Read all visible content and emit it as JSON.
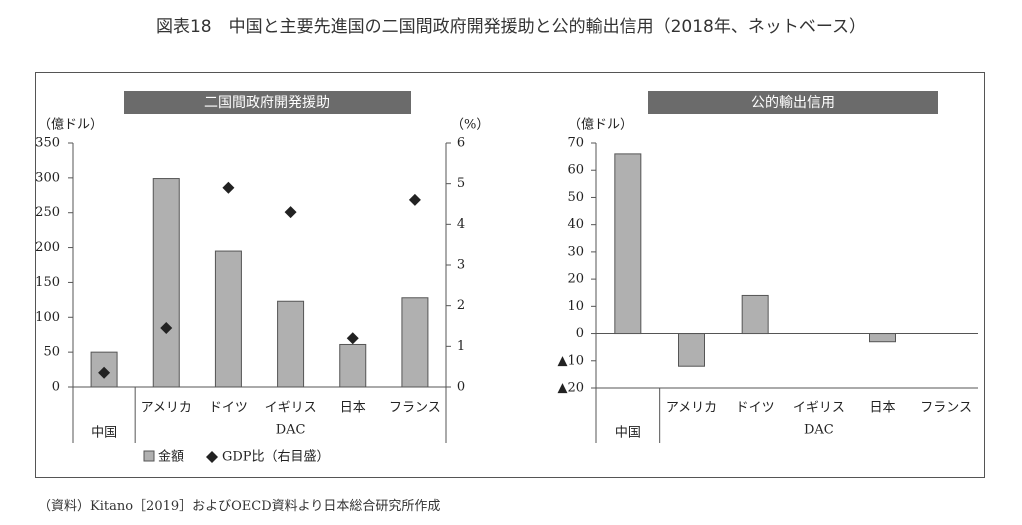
{
  "title": "図表18　中国と主要先進国の二国間政府開発援助と公的輸出信用（2018年、ネットベース）",
  "source": "（資料）Kitano［2019］およびOECD資料より日本総合研究所作成",
  "colors": {
    "bar": "#b0b0b0",
    "bar_stroke": "#555555",
    "header_bg": "#6b6b6b",
    "header_text": "#ffffff",
    "marker": "#222222"
  },
  "chart_data": [
    {
      "type": "bar",
      "title": "二国間政府開発援助",
      "y_unit_label": "（億ドル）",
      "y2_unit_label": "（%）",
      "categories": [
        "中国",
        "アメリカ",
        "ドイツ",
        "イギリス",
        "日本",
        "フランス"
      ],
      "group_label": "DAC",
      "ylim": [
        0,
        350
      ],
      "yticks": [
        0,
        50,
        100,
        150,
        200,
        250,
        300,
        350
      ],
      "y2lim": [
        0,
        6
      ],
      "y2ticks": [
        0,
        1,
        2,
        3,
        4,
        5,
        6
      ],
      "series": [
        {
          "name": "金額",
          "type": "bar",
          "axis": "left",
          "values": [
            50,
            299,
            195,
            123,
            61,
            128
          ]
        },
        {
          "name": "GDP比（右目盛）",
          "type": "marker",
          "axis": "right",
          "values": [
            0.35,
            1.45,
            4.9,
            4.3,
            1.2,
            4.6
          ]
        }
      ],
      "legend": [
        "金額",
        "GDP比（右目盛）"
      ],
      "legend_position": "bottom"
    },
    {
      "type": "bar",
      "title": "公的輸出信用",
      "y_unit_label": "（億ドル）",
      "categories": [
        "中国",
        "アメリカ",
        "ドイツ",
        "イギリス",
        "日本",
        "フランス"
      ],
      "group_label": "DAC",
      "ylim": [
        -20,
        70
      ],
      "yticks": [
        70,
        60,
        50,
        40,
        30,
        20,
        10,
        0,
        -10,
        -20
      ],
      "ytick_labels": [
        "70",
        "60",
        "50",
        "40",
        "30",
        "20",
        "10",
        "0",
        "▲10",
        "▲20"
      ],
      "series": [
        {
          "name": "金額",
          "type": "bar",
          "values": [
            66,
            -12,
            14,
            0,
            -3,
            0
          ]
        }
      ]
    }
  ]
}
